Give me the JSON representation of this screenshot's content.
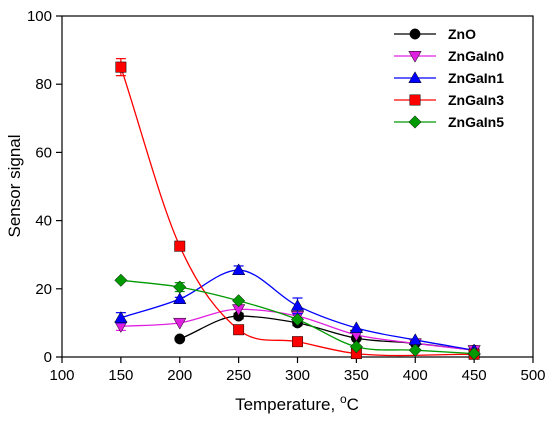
{
  "chart_data": {
    "type": "line",
    "xlabel": "Temperature, ",
    "xlabel_unit": "oC",
    "ylabel": "Sensor signal",
    "xlim": [
      100,
      500
    ],
    "ylim": [
      0,
      100
    ],
    "xticks": [
      "100",
      "150",
      "200",
      "250",
      "300",
      "350",
      "400",
      "450",
      "500"
    ],
    "yticks": [
      "0",
      "20",
      "40",
      "60",
      "80",
      "100"
    ],
    "xtick_values": [
      100,
      150,
      200,
      250,
      300,
      350,
      400,
      450,
      500
    ],
    "ytick_values": [
      0,
      20,
      40,
      60,
      80,
      100
    ],
    "grid": false,
    "legend_position": "top-right",
    "series": [
      {
        "name": "ZnO",
        "color": "#000000",
        "marker": "circle",
        "x": [
          200,
          250,
          300,
          350,
          400,
          450
        ],
        "y": [
          5.3,
          12,
          10,
          5.5,
          4,
          2
        ],
        "err": [
          0,
          0.8,
          0.8,
          0,
          0,
          0
        ]
      },
      {
        "name": "ZnGaIn0",
        "color": "#e020e0",
        "marker": "triangle-down",
        "x": [
          150,
          200,
          250,
          300,
          350,
          400,
          450
        ],
        "y": [
          9,
          10,
          14,
          12,
          6.5,
          4,
          2
        ],
        "err": [
          1.2,
          0,
          0,
          0,
          0,
          0,
          0
        ]
      },
      {
        "name": "ZnGaIn1",
        "color": "#0000ff",
        "marker": "triangle-up",
        "x": [
          150,
          200,
          250,
          300,
          350,
          400,
          450
        ],
        "y": [
          11.5,
          17,
          25.5,
          15,
          8.5,
          5,
          2
        ],
        "err": [
          1.5,
          0.5,
          1.2,
          2.3,
          0,
          0,
          0
        ]
      },
      {
        "name": "ZnGaIn3",
        "color": "#ff0000",
        "marker": "square",
        "x": [
          150,
          200,
          250,
          300,
          350,
          450
        ],
        "y": [
          85,
          32.5,
          8,
          4.5,
          1,
          0.8
        ],
        "err": [
          2.5,
          0.5,
          0,
          0,
          0,
          0
        ]
      },
      {
        "name": "ZnGaIn5",
        "color": "#009900",
        "marker": "diamond",
        "x": [
          150,
          200,
          250,
          300,
          350,
          400,
          450
        ],
        "y": [
          22.5,
          20.5,
          16.5,
          11,
          3,
          2,
          1
        ],
        "err": [
          0,
          1.3,
          0,
          0,
          0,
          0,
          0
        ]
      }
    ]
  }
}
